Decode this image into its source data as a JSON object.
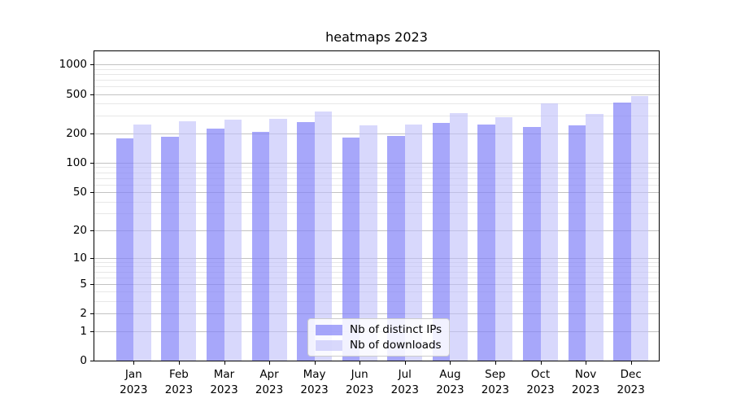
{
  "chart_data": {
    "type": "bar",
    "title": "heatmaps 2023",
    "categories": [
      "Jan 2023",
      "Feb 2023",
      "Mar 2023",
      "Apr 2023",
      "May 2023",
      "Jun 2023",
      "Jul 2023",
      "Aug 2023",
      "Sep 2023",
      "Oct 2023",
      "Nov 2023",
      "Dec 2023"
    ],
    "series": [
      {
        "name": "Nb of distinct IPs",
        "color": "rgba(130,130,248,0.7)",
        "values": [
          178,
          183,
          225,
          208,
          260,
          181,
          187,
          255,
          245,
          232,
          239,
          412
        ]
      },
      {
        "name": "Nb of downloads",
        "color": "rgba(190,190,250,0.6)",
        "values": [
          246,
          263,
          275,
          280,
          332,
          241,
          244,
          320,
          291,
          400,
          314,
          474
        ]
      }
    ],
    "y_axis": {
      "scale": "symlog",
      "ticks": [
        1000,
        500,
        200,
        100,
        50,
        20,
        10,
        5,
        2,
        1,
        0
      ],
      "minor_ticks": [
        900,
        800,
        700,
        600,
        400,
        300,
        90,
        80,
        70,
        60,
        40,
        30,
        9,
        8,
        7,
        6,
        4,
        3
      ],
      "ylim": [
        0,
        1380
      ]
    },
    "grid": "on",
    "legend_position": "lower center",
    "colors": {
      "grid_major": "#c2c2c2",
      "grid_minor": "#e7e7e7",
      "axis": "#000000"
    }
  }
}
